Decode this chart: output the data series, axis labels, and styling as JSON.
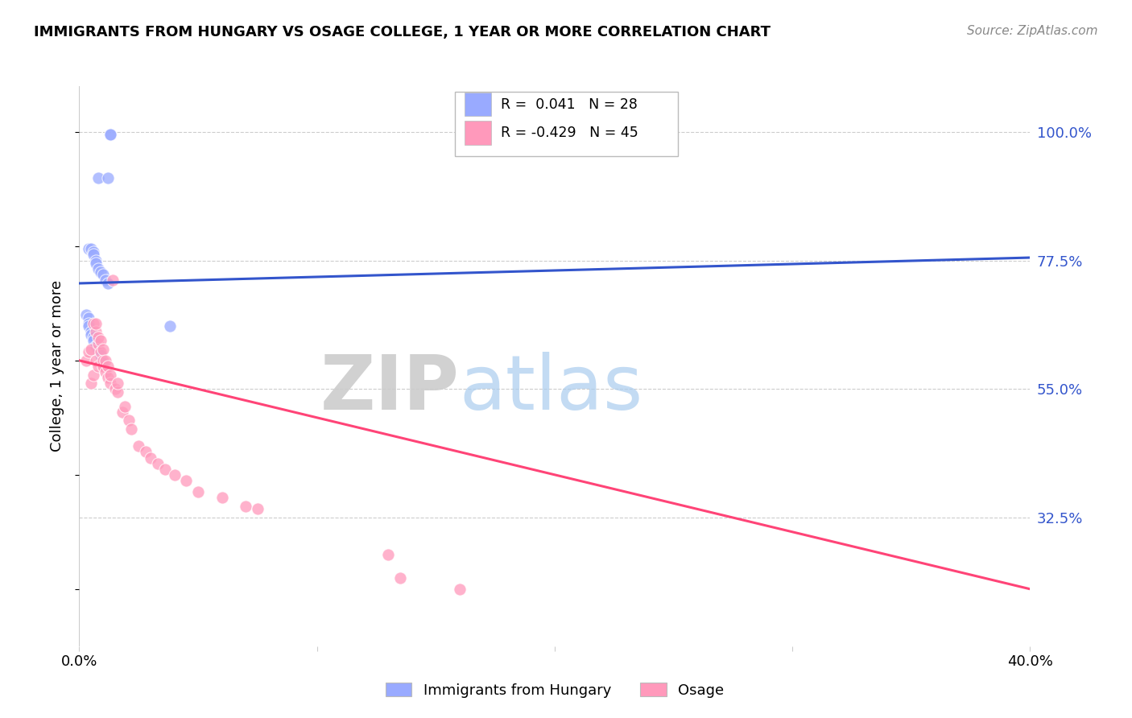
{
  "title": "IMMIGRANTS FROM HUNGARY VS OSAGE COLLEGE, 1 YEAR OR MORE CORRELATION CHART",
  "source": "Source: ZipAtlas.com",
  "ylabel": "College, 1 year or more",
  "ytick_labels": [
    "100.0%",
    "77.5%",
    "55.0%",
    "32.5%"
  ],
  "ytick_positions": [
    1.0,
    0.775,
    0.55,
    0.325
  ],
  "legend_blue_r": "0.041",
  "legend_blue_n": "28",
  "legend_pink_r": "-0.429",
  "legend_pink_n": "45",
  "blue_color": "#99aaff",
  "pink_color": "#ff99bb",
  "blue_line_color": "#3355cc",
  "pink_line_color": "#ff4477",
  "watermark_zip": "ZIP",
  "watermark_atlas": "atlas",
  "blue_scatter_x": [
    0.008,
    0.012,
    0.013,
    0.013,
    0.004,
    0.005,
    0.006,
    0.006,
    0.007,
    0.007,
    0.008,
    0.009,
    0.01,
    0.011,
    0.012,
    0.003,
    0.004,
    0.004,
    0.004,
    0.005,
    0.005,
    0.006,
    0.006,
    0.007,
    0.008,
    0.009,
    0.01,
    0.038
  ],
  "blue_scatter_y": [
    0.92,
    0.92,
    0.995,
    0.995,
    0.795,
    0.795,
    0.79,
    0.785,
    0.775,
    0.77,
    0.76,
    0.755,
    0.75,
    0.74,
    0.735,
    0.68,
    0.675,
    0.665,
    0.66,
    0.65,
    0.645,
    0.64,
    0.635,
    0.625,
    0.62,
    0.61,
    0.595,
    0.66
  ],
  "pink_scatter_x": [
    0.003,
    0.004,
    0.005,
    0.005,
    0.006,
    0.006,
    0.007,
    0.007,
    0.007,
    0.008,
    0.008,
    0.008,
    0.009,
    0.009,
    0.01,
    0.01,
    0.01,
    0.011,
    0.011,
    0.012,
    0.012,
    0.013,
    0.013,
    0.014,
    0.015,
    0.016,
    0.016,
    0.018,
    0.019,
    0.021,
    0.022,
    0.025,
    0.028,
    0.03,
    0.033,
    0.036,
    0.04,
    0.045,
    0.05,
    0.06,
    0.07,
    0.075,
    0.13,
    0.135,
    0.16
  ],
  "pink_scatter_y": [
    0.6,
    0.615,
    0.56,
    0.62,
    0.575,
    0.665,
    0.6,
    0.65,
    0.665,
    0.59,
    0.63,
    0.64,
    0.615,
    0.635,
    0.59,
    0.6,
    0.62,
    0.58,
    0.6,
    0.57,
    0.59,
    0.56,
    0.575,
    0.74,
    0.55,
    0.545,
    0.56,
    0.51,
    0.52,
    0.495,
    0.48,
    0.45,
    0.44,
    0.43,
    0.42,
    0.41,
    0.4,
    0.39,
    0.37,
    0.36,
    0.345,
    0.34,
    0.26,
    0.22,
    0.2
  ],
  "blue_line_x": [
    0.0,
    0.4
  ],
  "blue_line_y": [
    0.735,
    0.78
  ],
  "pink_line_x": [
    0.0,
    0.4
  ],
  "pink_line_y": [
    0.6,
    0.2
  ],
  "xlim": [
    0.0,
    0.4
  ],
  "ylim": [
    0.1,
    1.08
  ],
  "bg_color": "#ffffff",
  "grid_color": "#cccccc"
}
